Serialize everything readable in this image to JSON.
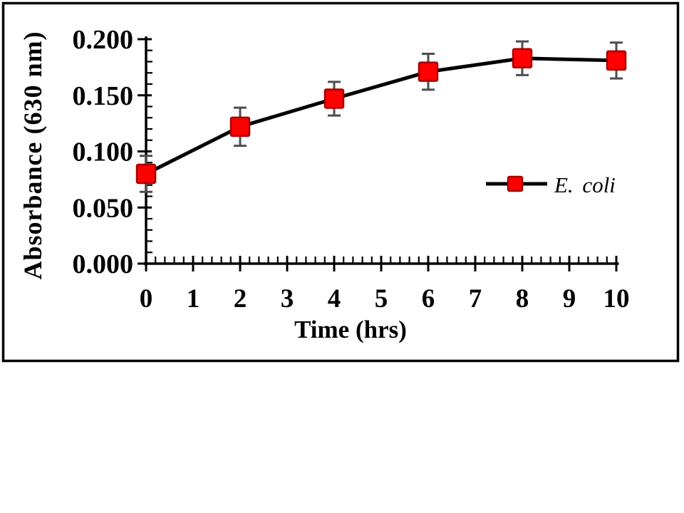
{
  "page": {
    "background": "#ffffff"
  },
  "chart_data": {
    "type": "line",
    "title": "",
    "xlabel": "Time (hrs)",
    "ylabel": "Absorbance (630 nm)",
    "x": [
      0,
      2,
      4,
      6,
      8,
      10
    ],
    "series": [
      {
        "name": "E. coli",
        "marker": "square",
        "values": [
          0.08,
          0.122,
          0.147,
          0.171,
          0.183,
          0.181
        ],
        "errors": [
          0.016,
          0.017,
          0.015,
          0.016,
          0.015,
          0.016
        ]
      }
    ],
    "xlim": [
      0,
      10
    ],
    "ylim": [
      0.0,
      0.2
    ],
    "x_major_ticks": [
      0,
      1,
      2,
      3,
      4,
      5,
      6,
      7,
      8,
      9,
      10
    ],
    "x_tick_labels": [
      "0",
      "1",
      "2",
      "3",
      "4",
      "5",
      "6",
      "7",
      "8",
      "9",
      "10"
    ],
    "x_minor_step": 0.2,
    "y_major_ticks": [
      0.0,
      0.05,
      0.1,
      0.15,
      0.2
    ],
    "y_tick_labels": [
      "0.000",
      "0.050",
      "0.100",
      "0.150",
      "0.200"
    ],
    "y_minor_step": 0.01,
    "grid": false,
    "legend": {
      "label": "E. coli",
      "position": "inside-right"
    },
    "colors": {
      "marker_fill": "#fe0000",
      "marker_border": "#a60000",
      "series_line": "#000000",
      "error_bar": "#4d4d4d",
      "axis": "#000000",
      "frame_border": "#000000",
      "background": "#ffffff"
    }
  }
}
